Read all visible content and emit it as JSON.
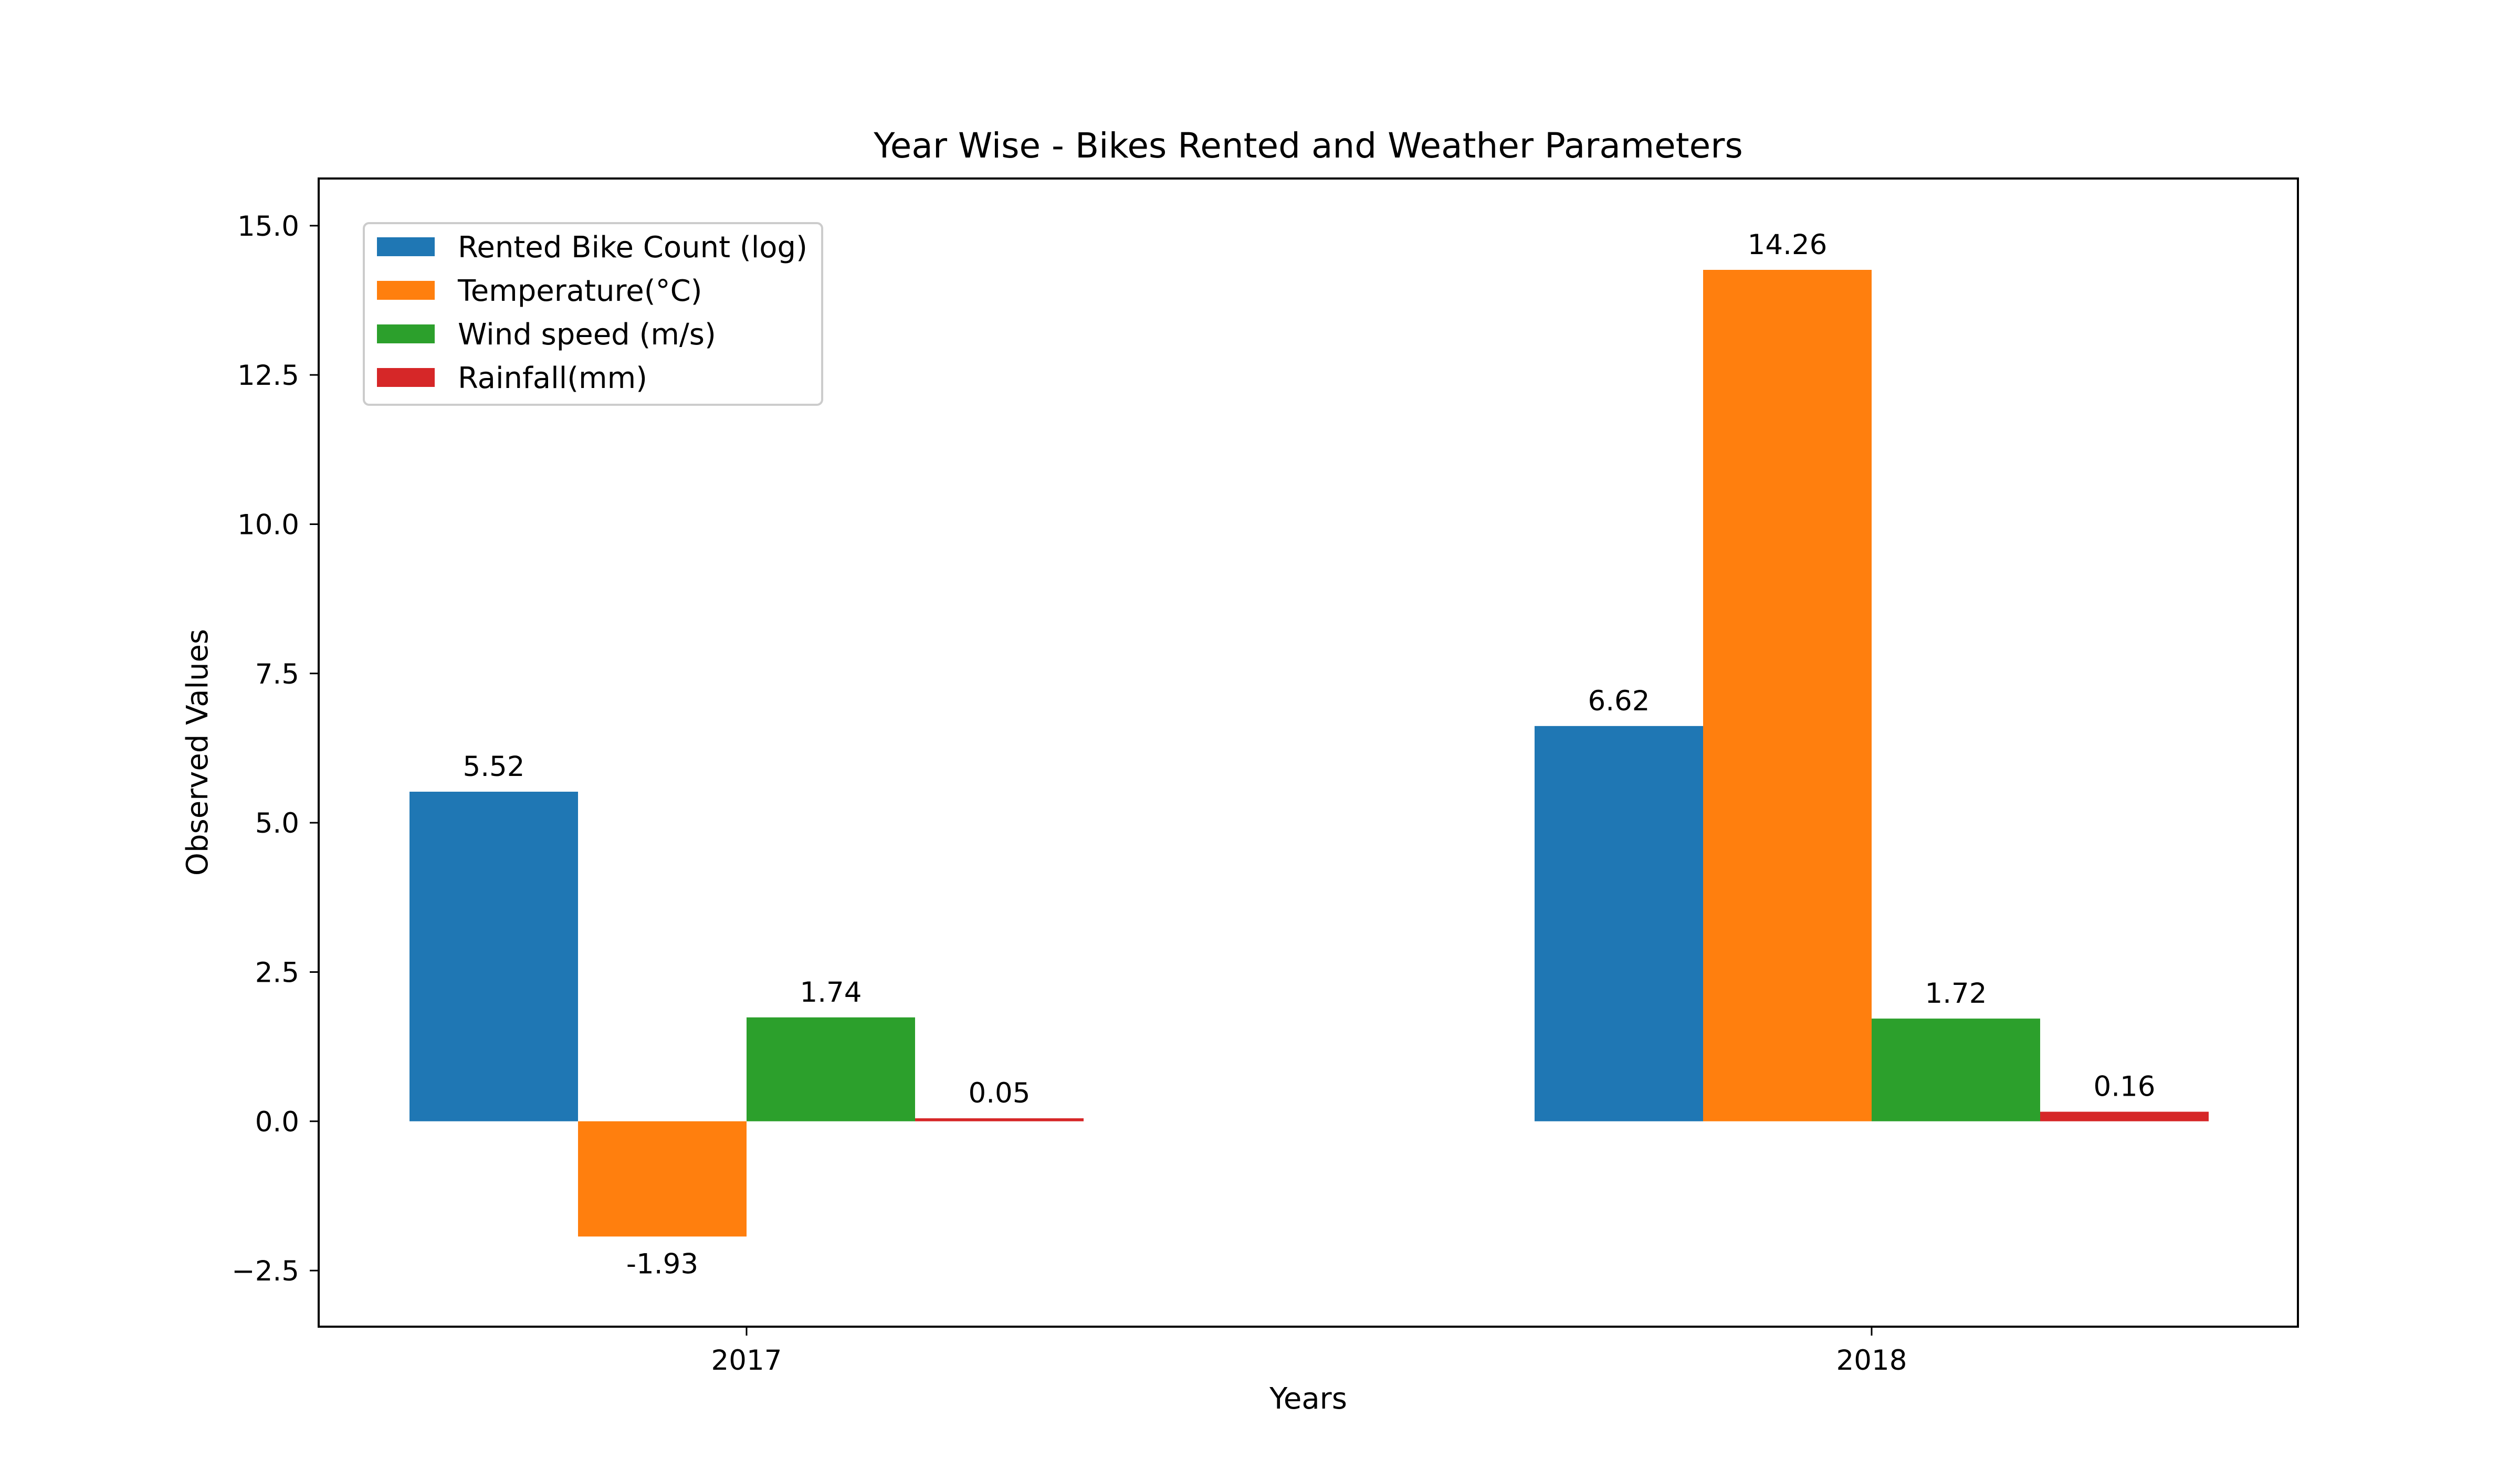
{
  "chart_data": {
    "type": "bar",
    "title": "Year Wise - Bikes Rented and Weather Parameters",
    "xlabel": "Years",
    "ylabel": "Observed Values",
    "categories": [
      "2017",
      "2018"
    ],
    "series": [
      {
        "name": "Rented Bike Count (log)",
        "color": "#1f77b4",
        "values": [
          5.52,
          6.62
        ]
      },
      {
        "name": "Temperature(°C)",
        "color": "#ff7f0e",
        "values": [
          -1.93,
          14.26
        ]
      },
      {
        "name": "Wind speed (m/s)",
        "color": "#2ca02c",
        "values": [
          1.74,
          1.72
        ]
      },
      {
        "name": "Rainfall(mm)",
        "color": "#d62728",
        "values": [
          0.05,
          0.16
        ]
      }
    ],
    "data_labels": [
      [
        "5.52",
        "6.62"
      ],
      [
        "-1.93",
        "14.26"
      ],
      [
        "1.74",
        "1.72"
      ],
      [
        "0.05",
        "0.16"
      ]
    ],
    "ylim": [
      -3.44,
      15.79
    ],
    "yticks": [
      -2.5,
      0.0,
      2.5,
      5.0,
      7.5,
      10.0,
      12.5,
      15.0
    ],
    "ytick_labels": [
      "−2.5",
      "0.0",
      "2.5",
      "5.0",
      "7.5",
      "10.0",
      "12.5",
      "15.0"
    ],
    "grid": false,
    "legend_position": "top-left"
  }
}
